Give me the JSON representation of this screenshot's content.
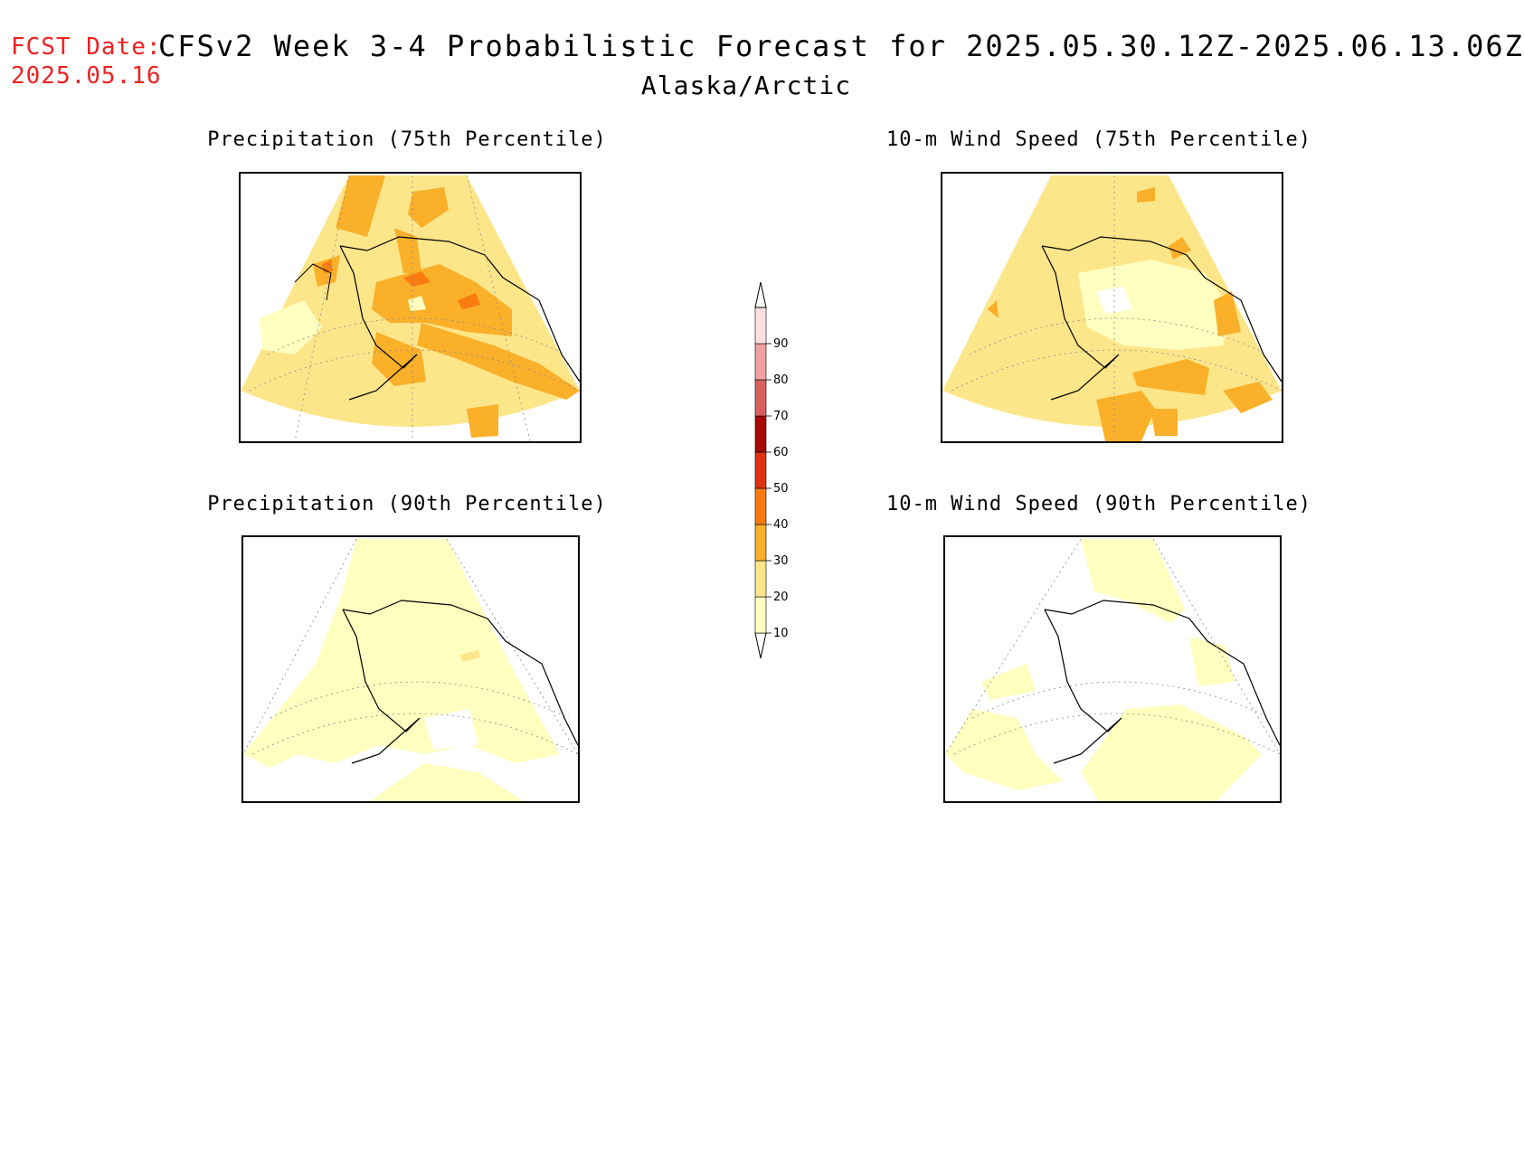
{
  "header": {
    "fcst_label": "FCST Date:",
    "fcst_date": "2025.05.16",
    "title": "CFSv2 Week 3-4 Probabilistic Forecast for 2025.05.30.12Z-2025.06.13.06Z",
    "region": "Alaska/Arctic"
  },
  "panels": [
    {
      "title": "Precipitation (75th Percentile)"
    },
    {
      "title": "10-m Wind Speed (75th Percentile)"
    },
    {
      "title": "Precipitation (90th Percentile)"
    },
    {
      "title": "10-m Wind Speed (90th Percentile)"
    }
  ],
  "legend": {
    "labels": [
      "10",
      "20",
      "30",
      "40",
      "50",
      "60",
      "70",
      "80",
      "90"
    ],
    "colors": [
      "#ffffbf",
      "#fde68a",
      "#fbb02a",
      "#f97b0f",
      "#e03010",
      "#a80a00",
      "#d95f5f",
      "#f0a0a0",
      "#fde0e0"
    ]
  }
}
